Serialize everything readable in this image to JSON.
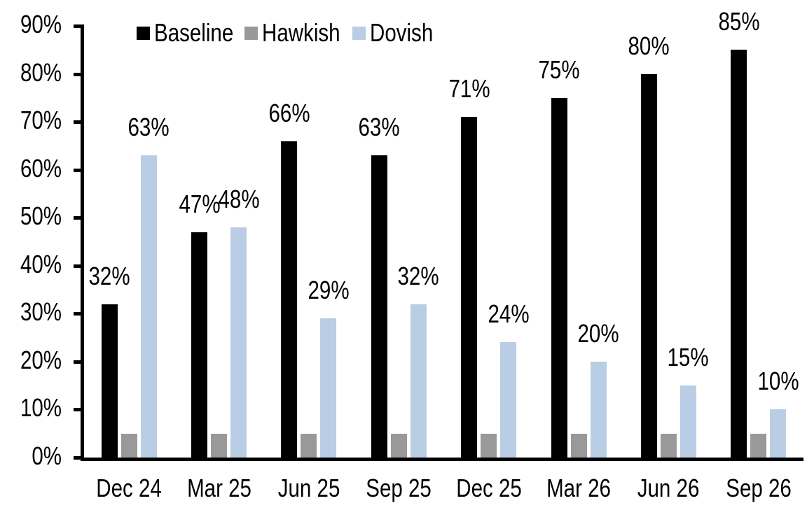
{
  "chart_data": {
    "type": "bar",
    "title": "",
    "xlabel": "",
    "ylabel": "",
    "ylim": [
      0,
      90
    ],
    "y_ticks": [
      "0%",
      "10%",
      "20%",
      "30%",
      "40%",
      "50%",
      "60%",
      "70%",
      "80%",
      "90%"
    ],
    "grid": false,
    "legend_position": "top",
    "background_color": "#ffffff",
    "axis_color": "#000000",
    "text_color": "#000000",
    "categories": [
      "Dec 24",
      "Mar 25",
      "Jun 25",
      "Sep 25",
      "Dec 25",
      "Mar 26",
      "Jun 26",
      "Sep 26"
    ],
    "series": [
      {
        "name": "Baseline",
        "color": "#000000",
        "values": [
          32,
          47,
          66,
          63,
          71,
          75,
          80,
          85
        ],
        "labels": [
          "32%",
          "47%",
          "66%",
          "63%",
          "71%",
          "75%",
          "80%",
          "85%"
        ]
      },
      {
        "name": "Hawkish",
        "color": "#999999",
        "values": [
          5,
          5,
          5,
          5,
          5,
          5,
          5,
          5
        ],
        "labels": [
          "",
          "",
          "",
          "",
          "",
          "",
          "",
          ""
        ]
      },
      {
        "name": "Dovish",
        "color": "#B9CDE5",
        "values": [
          63,
          48,
          29,
          32,
          24,
          20,
          15,
          10
        ],
        "labels": [
          "63%",
          "48%",
          "29%",
          "32%",
          "24%",
          "20%",
          "15%",
          "10%"
        ]
      }
    ]
  }
}
